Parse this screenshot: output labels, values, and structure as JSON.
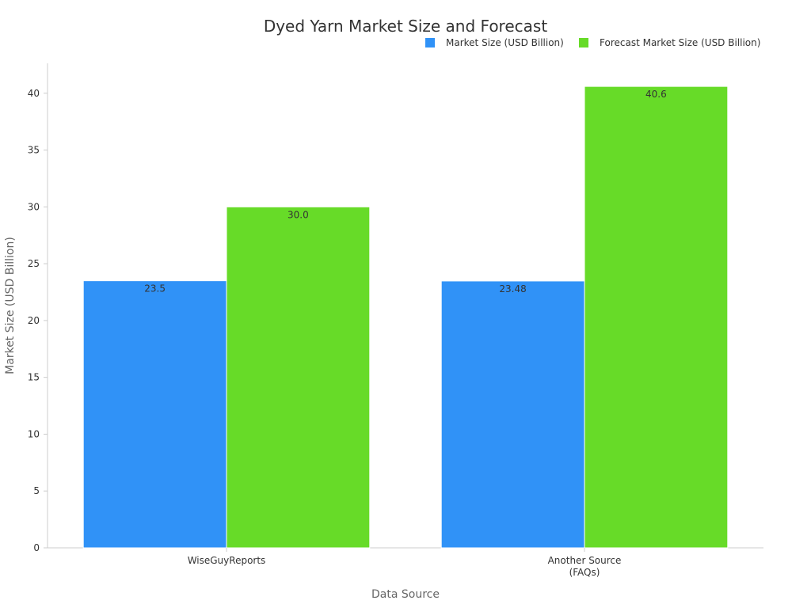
{
  "chart_data": {
    "type": "bar",
    "title": "Dyed Yarn Market Size and Forecast",
    "xlabel": "Data Source",
    "ylabel": "Market Size (USD Billion)",
    "categories": [
      "WiseGuyReports",
      "Another Source\n(FAQs)"
    ],
    "series": [
      {
        "name": "Market Size (USD Billion)",
        "values": [
          23.5,
          23.48
        ],
        "labels": [
          "23.5",
          "23.48"
        ],
        "color": "#3092F7"
      },
      {
        "name": "Forecast Market Size (USD Billion)",
        "values": [
          30.0,
          40.6
        ],
        "labels": [
          "30.0",
          "40.6"
        ],
        "color": "#67DB28"
      }
    ],
    "ylim": [
      0,
      42.63
    ],
    "yticks": [
      0,
      5,
      10,
      15,
      20,
      25,
      30,
      35,
      40
    ],
    "grid": false,
    "legend_position": "top-right"
  }
}
